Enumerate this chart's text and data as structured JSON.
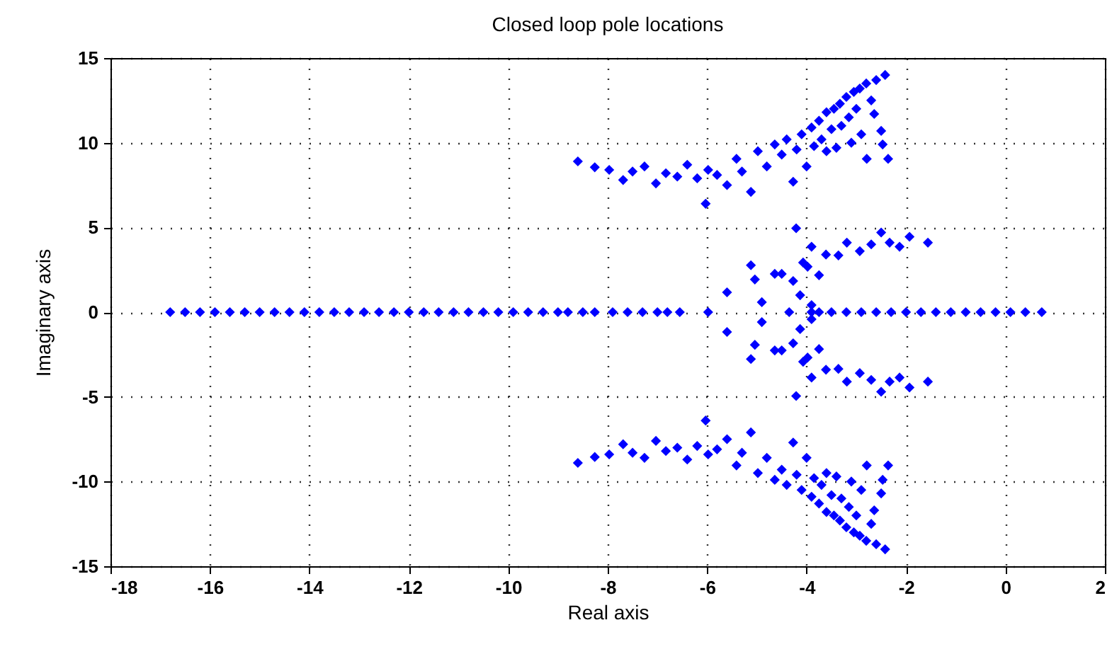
{
  "chart_data": {
    "type": "scatter",
    "title": "Closed loop pole locations",
    "xlabel": "Real axis",
    "ylabel": "Imaginary axis",
    "xlim": [
      -18,
      2
    ],
    "xticks": [
      -18,
      -16,
      -14,
      -12,
      -10,
      -8,
      -6,
      -4,
      -2,
      0,
      2
    ],
    "ylim": [
      -15,
      15
    ],
    "yticks": [
      -15,
      -10,
      -5,
      0,
      5,
      10,
      15
    ],
    "grid": true,
    "marker": "diamond",
    "series": [
      {
        "color": "#0000ff",
        "x": [
          -8.6,
          -8.26,
          -7.97,
          -7.69,
          -7.5,
          -7.26,
          -7.03,
          -6.83,
          -6.6,
          -6.4,
          -6.2,
          -6.03,
          -5.98,
          -5.8,
          -5.6,
          -5.41,
          -5.3,
          -5.12,
          -4.98,
          -4.8,
          -4.64,
          -4.5,
          -4.4,
          -4.27,
          -4.2,
          -4.1,
          -3.9,
          -3.85,
          -3.75,
          -3.7,
          -3.6,
          -3.5,
          -3.45,
          -3.33,
          -3.3,
          -3.2,
          -3.15,
          -3.05,
          -3.0,
          -2.93,
          -2.9,
          -2.8,
          -2.79,
          -2.7,
          -2.64,
          -2.6,
          -2.5,
          -2.47,
          -2.42,
          -2.36,
          -3.6,
          -4.0,
          -3.4,
          -3.1,
          -8.6,
          -8.26,
          -7.97,
          -7.69,
          -7.5,
          -7.26,
          -7.03,
          -6.83,
          -6.6,
          -6.4,
          -6.2,
          -6.03,
          -5.98,
          -5.8,
          -5.6,
          -5.41,
          -5.3,
          -5.12,
          -4.98,
          -4.8,
          -4.64,
          -4.5,
          -4.4,
          -4.27,
          -4.2,
          -4.1,
          -3.9,
          -3.85,
          -3.75,
          -3.7,
          -3.6,
          -3.5,
          -3.45,
          -3.33,
          -3.3,
          -3.2,
          -3.15,
          -3.05,
          -3.0,
          -2.93,
          -2.9,
          -2.8,
          -2.79,
          -2.7,
          -2.64,
          -2.6,
          -2.5,
          -2.47,
          -2.42,
          -2.36,
          -3.6,
          -4.0,
          -3.4,
          -3.1,
          -4.21,
          -3.9,
          -3.61,
          -3.36,
          -3.19,
          -2.93,
          -2.7,
          -2.5,
          -2.33,
          -2.13,
          -1.93,
          -1.56,
          -5.12,
          -5.04,
          -5.6,
          -4.9,
          -4.64,
          -4.5,
          -4.27,
          -4.13,
          -4.07,
          -3.98,
          -3.75,
          -3.9,
          -4.21,
          -3.9,
          -3.61,
          -3.36,
          -3.19,
          -2.93,
          -2.7,
          -2.5,
          -2.33,
          -2.13,
          -1.93,
          -1.56,
          -5.12,
          -5.04,
          -5.6,
          -4.9,
          -4.64,
          -4.5,
          -4.27,
          -4.13,
          -4.07,
          -3.98,
          -3.75,
          -3.9,
          -16.8,
          -16.5,
          -16.2,
          -15.9,
          -15.6,
          -15.3,
          -15.0,
          -14.7,
          -14.4,
          -14.1,
          -13.8,
          -13.5,
          -13.2,
          -12.9,
          -12.6,
          -12.3,
          -12.0,
          -11.7,
          -11.4,
          -11.1,
          -10.8,
          -10.5,
          -10.2,
          -9.9,
          -9.6,
          -9.3,
          -9.0,
          -8.8,
          -8.5,
          -8.26,
          -7.9,
          -7.6,
          -7.3,
          -7.0,
          -6.8,
          -6.55,
          -5.98,
          -4.35,
          -3.9,
          -3.75,
          -3.5,
          -3.2,
          -2.9,
          -2.6,
          -2.3,
          -2.0,
          -1.7,
          -1.4,
          -1.1,
          -0.8,
          -0.5,
          -0.2,
          0.1,
          0.4,
          0.73
        ],
        "values": [
          8.9,
          8.55,
          8.4,
          7.8,
          8.3,
          8.6,
          7.6,
          8.2,
          8.0,
          8.7,
          7.9,
          6.4,
          8.4,
          8.1,
          7.5,
          9.05,
          8.3,
          7.1,
          9.5,
          8.6,
          9.9,
          9.3,
          10.2,
          7.7,
          9.6,
          10.5,
          10.9,
          9.8,
          11.3,
          10.2,
          11.8,
          10.8,
          12.0,
          12.3,
          11.0,
          12.7,
          11.5,
          13.0,
          12.0,
          13.2,
          10.5,
          13.5,
          9.05,
          12.5,
          11.7,
          13.7,
          10.7,
          9.9,
          14.0,
          9.05,
          9.5,
          8.6,
          9.7,
          10.0,
          -8.9,
          -8.55,
          -8.4,
          -7.8,
          -8.3,
          -8.6,
          -7.6,
          -8.2,
          -8.0,
          -8.7,
          -7.9,
          -6.4,
          -8.4,
          -8.1,
          -7.5,
          -9.05,
          -8.3,
          -7.1,
          -9.5,
          -8.6,
          -9.9,
          -9.3,
          -10.2,
          -7.7,
          -9.6,
          -10.5,
          -10.9,
          -9.8,
          -11.3,
          -10.2,
          -11.8,
          -10.8,
          -12.0,
          -12.3,
          -11.0,
          -12.7,
          -11.5,
          -13.0,
          -12.0,
          -13.2,
          -10.5,
          -13.5,
          -9.05,
          -12.5,
          -11.7,
          -13.7,
          -10.7,
          -9.9,
          -14.0,
          -9.05,
          -9.5,
          -8.6,
          -9.7,
          -10.0,
          4.95,
          3.86,
          3.4,
          3.35,
          4.1,
          3.6,
          4.0,
          4.7,
          4.1,
          3.86,
          4.45,
          4.1,
          2.77,
          1.93,
          1.17,
          0.59,
          2.26,
          2.26,
          1.84,
          1.0,
          2.93,
          2.68,
          2.18,
          0.42,
          -4.95,
          -3.86,
          -3.4,
          -3.35,
          -4.1,
          -3.6,
          -4.0,
          -4.7,
          -4.1,
          -3.86,
          -4.45,
          -4.1,
          -2.77,
          -1.93,
          -1.17,
          -0.59,
          -2.26,
          -2.26,
          -1.84,
          -1.0,
          -2.93,
          -2.68,
          -2.18,
          -0.42,
          0,
          0,
          0,
          0,
          0,
          0,
          0,
          0,
          0,
          0,
          0,
          0,
          0,
          0,
          0,
          0,
          0,
          0,
          0,
          0,
          0,
          0,
          0,
          0,
          0,
          0,
          0,
          0,
          0,
          0,
          0,
          0,
          0,
          0,
          0,
          0,
          0,
          0,
          0,
          0,
          0,
          0,
          0,
          0,
          0,
          0,
          0,
          0,
          0,
          0,
          0,
          0,
          0,
          0,
          0
        ]
      }
    ]
  }
}
